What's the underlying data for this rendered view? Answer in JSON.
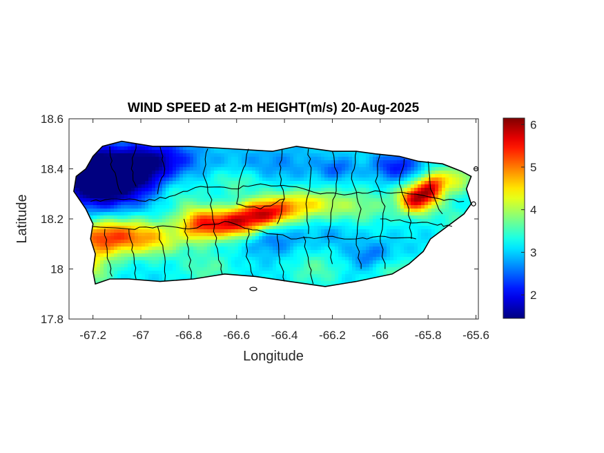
{
  "chart_data": {
    "type": "heatmap",
    "title": "WIND SPEED at 2-m HEIGHT(m/s) 20-Aug-2025",
    "xlabel": "Longitude",
    "ylabel": "Latitude",
    "xlim": [
      -67.3,
      -65.59
    ],
    "ylim": [
      17.8,
      18.6
    ],
    "xticks": [
      -67.2,
      -67,
      -66.8,
      -66.6,
      -66.4,
      -66.2,
      -66,
      -65.8,
      -65.6
    ],
    "yticks": [
      17.8,
      18.0,
      18.2,
      18.4,
      18.6
    ],
    "xtick_labels": [
      "-67.2",
      "-67",
      "-66.8",
      "-66.6",
      "-66.4",
      "-66.2",
      "-66",
      "-65.8",
      "-65.6"
    ],
    "ytick_labels": [
      "17.8",
      "18",
      "18.2",
      "18.4",
      "18.6"
    ],
    "colorbar": {
      "colormap": "jet",
      "range": [
        1.45,
        6.15
      ],
      "ticks": [
        2,
        3,
        4,
        5,
        6
      ],
      "tick_labels": [
        "2",
        "3",
        "4",
        "5",
        "6"
      ]
    },
    "grid": false,
    "base_value": 3.1,
    "features": [
      {
        "lon": -67.18,
        "lat": 18.33,
        "value": -1.7,
        "sx": 0.12,
        "sy": 0.07
      },
      {
        "lon": -67.03,
        "lat": 18.4,
        "value": -1.6,
        "sx": 0.1,
        "sy": 0.07
      },
      {
        "lon": -67.22,
        "lat": 18.42,
        "value": -1.3,
        "sx": 0.08,
        "sy": 0.06
      },
      {
        "lon": -66.88,
        "lat": 18.44,
        "value": -0.8,
        "sx": 0.1,
        "sy": 0.05
      },
      {
        "lon": -66.45,
        "lat": 18.42,
        "value": -0.4,
        "sx": 0.15,
        "sy": 0.05
      },
      {
        "lon": -65.93,
        "lat": 18.41,
        "value": -1.0,
        "sx": 0.07,
        "sy": 0.04
      },
      {
        "lon": -66.18,
        "lat": 18.4,
        "value": -0.6,
        "sx": 0.05,
        "sy": 0.03
      },
      {
        "lon": -67.12,
        "lat": 18.13,
        "value": 2.1,
        "sx": 0.11,
        "sy": 0.05
      },
      {
        "lon": -67.22,
        "lat": 18.02,
        "value": 1.1,
        "sx": 0.07,
        "sy": 0.07
      },
      {
        "lon": -66.93,
        "lat": 18.12,
        "value": 1.0,
        "sx": 0.08,
        "sy": 0.05
      },
      {
        "lon": -66.76,
        "lat": 18.18,
        "value": 1.7,
        "sx": 0.06,
        "sy": 0.05
      },
      {
        "lon": -66.62,
        "lat": 18.18,
        "value": 2.3,
        "sx": 0.08,
        "sy": 0.04
      },
      {
        "lon": -66.48,
        "lat": 18.22,
        "value": 2.3,
        "sx": 0.08,
        "sy": 0.04
      },
      {
        "lon": -66.33,
        "lat": 18.26,
        "value": 1.2,
        "sx": 0.1,
        "sy": 0.04
      },
      {
        "lon": -66.1,
        "lat": 18.25,
        "value": 0.7,
        "sx": 0.12,
        "sy": 0.05
      },
      {
        "lon": -65.85,
        "lat": 18.28,
        "value": 2.6,
        "sx": 0.05,
        "sy": 0.04
      },
      {
        "lon": -65.78,
        "lat": 18.33,
        "value": 2.0,
        "sx": 0.04,
        "sy": 0.04
      },
      {
        "lon": -65.68,
        "lat": 18.36,
        "value": 1.1,
        "sx": 0.05,
        "sy": 0.04
      },
      {
        "lon": -66.45,
        "lat": 18.13,
        "value": -0.6,
        "sx": 0.08,
        "sy": 0.05
      },
      {
        "lon": -66.03,
        "lat": 18.05,
        "value": -0.6,
        "sx": 0.07,
        "sy": 0.04
      },
      {
        "lon": -66.27,
        "lat": 18.0,
        "value": 0.5,
        "sx": 0.08,
        "sy": 0.05
      },
      {
        "lon": -65.95,
        "lat": 18.0,
        "value": 0.6,
        "sx": 0.06,
        "sy": 0.04
      },
      {
        "lon": -66.72,
        "lat": 18.0,
        "value": 0.5,
        "sx": 0.08,
        "sy": 0.05
      },
      {
        "lon": -66.6,
        "lat": 18.35,
        "value": 0.5,
        "sx": 0.08,
        "sy": 0.04
      },
      {
        "lon": -66.2,
        "lat": 18.14,
        "value": -0.3,
        "sx": 0.06,
        "sy": 0.04
      },
      {
        "lon": -65.7,
        "lat": 18.2,
        "value": 0.4,
        "sx": 0.05,
        "sy": 0.05
      },
      {
        "lon": -66.85,
        "lat": 18.3,
        "value": 0.4,
        "sx": 0.06,
        "sy": 0.05
      }
    ]
  }
}
